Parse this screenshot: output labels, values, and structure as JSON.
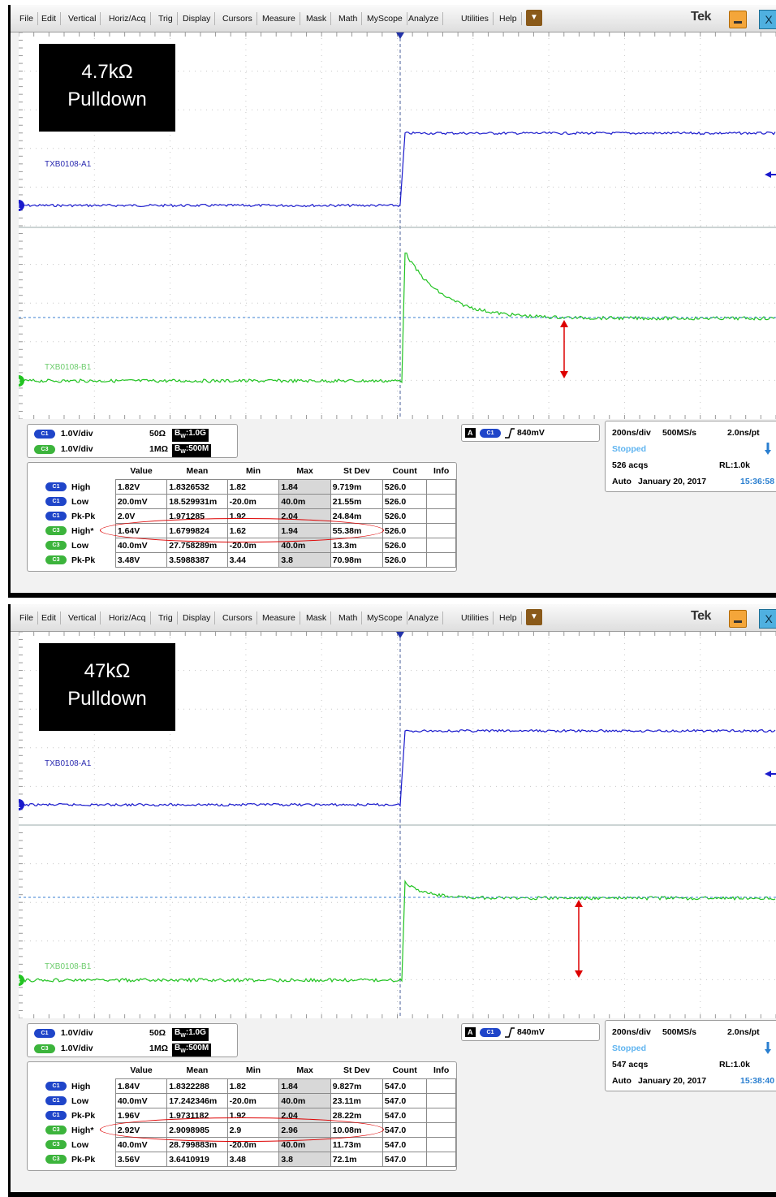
{
  "menu": [
    "File",
    "Edit",
    "Vertical",
    "Horiz/Acq",
    "Trig",
    "Display",
    "Cursors",
    "Measure",
    "Mask",
    "Math",
    "MyScope",
    "Analyze",
    "Utilities",
    "Help"
  ],
  "brand": "Tek",
  "colors": {
    "ch1": "#1a1acc",
    "ch3": "#22c322",
    "annotation": "#dd0000",
    "stopped": "#5fb4f0"
  },
  "screens": [
    {
      "overlay": {
        "line1": "4.7kΩ",
        "line2": "Pulldown"
      },
      "ch1_label": "TXB0108-A1",
      "ch3_label": "TXB0108-B1",
      "channels": [
        {
          "chip": "C1",
          "scale": "1.0V/div",
          "imp": "50Ω",
          "bw": "1.0G"
        },
        {
          "chip": "C3",
          "scale": "1.0V/div",
          "imp": "1MΩ",
          "bw": "500M"
        }
      ],
      "trigger": {
        "source": "C1",
        "level": "840mV"
      },
      "timebase": {
        "div": "200ns/div",
        "rate": "500MS/s",
        "pt": "2.0ns/pt",
        "state": "Stopped",
        "acqs": "526 acqs",
        "rl": "RL:1.0k",
        "mode": "Auto",
        "date": "January 20, 2017",
        "time": "15:36:58"
      },
      "meas_headers": [
        "Value",
        "Mean",
        "Min",
        "Max",
        "St Dev",
        "Count",
        "Info"
      ],
      "meas": [
        {
          "chip": "C1",
          "name": "High",
          "value": "1.82V",
          "mean": "1.8326532",
          "min": "1.82",
          "max": "1.84",
          "stdev": "9.719m",
          "count": "526.0"
        },
        {
          "chip": "C1",
          "name": "Low",
          "value": "20.0mV",
          "mean": "18.529931m",
          "min": "-20.0m",
          "max": "40.0m",
          "stdev": "21.55m",
          "count": "526.0"
        },
        {
          "chip": "C1",
          "name": "Pk-Pk",
          "value": "2.0V",
          "mean": "1.971285",
          "min": "1.92",
          "max": "2.04",
          "stdev": "24.84m",
          "count": "526.0"
        },
        {
          "chip": "C3",
          "name": "High*",
          "value": "1.64V",
          "mean": "1.6799824",
          "min": "1.62",
          "max": "1.94",
          "stdev": "55.38m",
          "count": "526.0"
        },
        {
          "chip": "C3",
          "name": "Low",
          "value": "40.0mV",
          "mean": "27.758289m",
          "min": "-20.0m",
          "max": "40.0m",
          "stdev": "13.3m",
          "count": "526.0"
        },
        {
          "chip": "C3",
          "name": "Pk-Pk",
          "value": "3.48V",
          "mean": "3.5988387",
          "min": "3.44",
          "max": "3.8",
          "stdev": "70.98m",
          "count": "526.0"
        }
      ],
      "marker1": "1",
      "marker3": "3"
    },
    {
      "overlay": {
        "line1": "47kΩ",
        "line2": "Pulldown"
      },
      "ch1_label": "TXB0108-A1",
      "ch3_label": "TXB0108-B1",
      "channels": [
        {
          "chip": "C1",
          "scale": "1.0V/div",
          "imp": "50Ω",
          "bw": "1.0G"
        },
        {
          "chip": "C3",
          "scale": "1.0V/div",
          "imp": "1MΩ",
          "bw": "500M"
        }
      ],
      "trigger": {
        "source": "C1",
        "level": "840mV"
      },
      "timebase": {
        "div": "200ns/div",
        "rate": "500MS/s",
        "pt": "2.0ns/pt",
        "state": "Stopped",
        "acqs": "547 acqs",
        "rl": "RL:1.0k",
        "mode": "Auto",
        "date": "January 20, 2017",
        "time": "15:38:40"
      },
      "meas_headers": [
        "Value",
        "Mean",
        "Min",
        "Max",
        "St Dev",
        "Count",
        "Info"
      ],
      "meas": [
        {
          "chip": "C1",
          "name": "High",
          "value": "1.84V",
          "mean": "1.8322288",
          "min": "1.82",
          "max": "1.84",
          "stdev": "9.827m",
          "count": "547.0"
        },
        {
          "chip": "C1",
          "name": "Low",
          "value": "40.0mV",
          "mean": "17.242346m",
          "min": "-20.0m",
          "max": "40.0m",
          "stdev": "23.11m",
          "count": "547.0"
        },
        {
          "chip": "C1",
          "name": "Pk-Pk",
          "value": "1.96V",
          "mean": "1.9731182",
          "min": "1.92",
          "max": "2.04",
          "stdev": "28.22m",
          "count": "547.0"
        },
        {
          "chip": "C3",
          "name": "High*",
          "value": "2.92V",
          "mean": "2.9098985",
          "min": "2.9",
          "max": "2.96",
          "stdev": "10.08m",
          "count": "547.0"
        },
        {
          "chip": "C3",
          "name": "Low",
          "value": "40.0mV",
          "mean": "28.799883m",
          "min": "-20.0m",
          "max": "40.0m",
          "stdev": "11.73m",
          "count": "547.0"
        },
        {
          "chip": "C3",
          "name": "Pk-Pk",
          "value": "3.56V",
          "mean": "3.6410919",
          "min": "3.48",
          "max": "3.8",
          "stdev": "72.1m",
          "count": "547.0"
        }
      ],
      "marker1": "1",
      "marker3": "3"
    }
  ]
}
